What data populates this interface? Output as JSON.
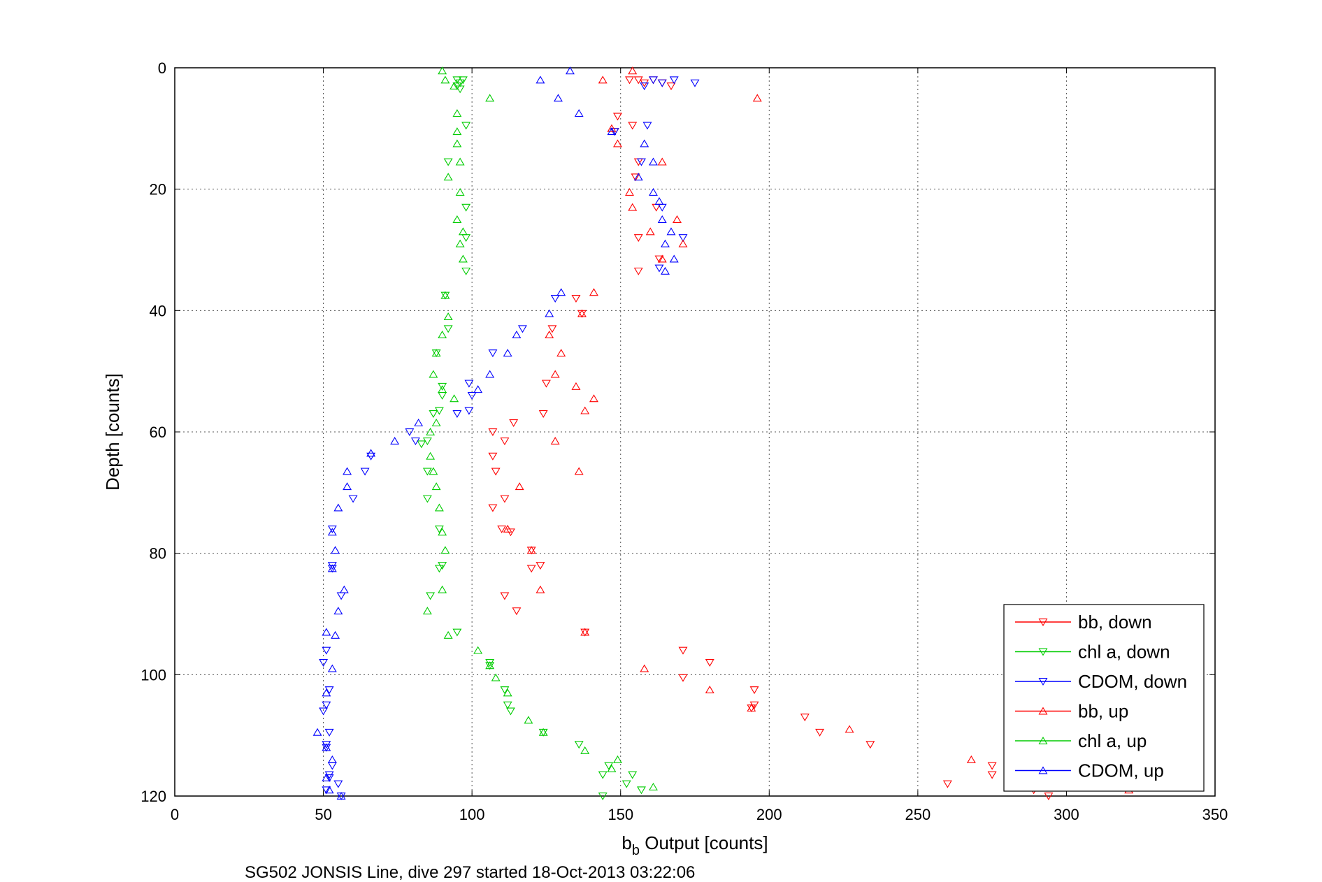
{
  "caption": "SG502 JONSIS Line, dive 297 started 18-Oct-2013 03:22:06",
  "chart_data": {
    "type": "scatter",
    "xlabel_main": "b",
    "xlabel_sub": "b",
    "xlabel_rest": " Output [counts]",
    "ylabel": "Depth [counts]",
    "xlim": [
      0,
      350
    ],
    "ylim": [
      0,
      120
    ],
    "y_reversed": true,
    "xticks": [
      0,
      50,
      100,
      150,
      200,
      250,
      300,
      350
    ],
    "yticks": [
      0,
      20,
      40,
      60,
      80,
      100,
      120
    ],
    "grid": true,
    "legend_position": "bottom-right",
    "series": [
      {
        "name": "bb, down",
        "color": "#ff0000",
        "marker": "triangle-down",
        "points": [
          [
            153,
            2
          ],
          [
            156,
            2
          ],
          [
            158,
            2.5
          ],
          [
            161,
            2
          ],
          [
            164,
            2.5
          ],
          [
            167,
            3
          ],
          [
            149,
            8
          ],
          [
            154,
            9.5
          ],
          [
            148,
            10.5
          ],
          [
            156,
            15.5
          ],
          [
            155,
            18
          ],
          [
            162,
            23
          ],
          [
            156,
            28
          ],
          [
            163,
            31.5
          ],
          [
            156,
            33.5
          ],
          [
            135,
            38
          ],
          [
            137,
            40.5
          ],
          [
            127,
            43
          ],
          [
            125,
            52
          ],
          [
            124,
            57
          ],
          [
            114,
            58.5
          ],
          [
            107,
            60
          ],
          [
            111,
            61.5
          ],
          [
            107,
            64
          ],
          [
            108,
            66.5
          ],
          [
            111,
            71
          ],
          [
            107,
            72.5
          ],
          [
            113,
            76.5
          ],
          [
            110,
            76
          ],
          [
            120,
            79.5
          ],
          [
            123,
            82
          ],
          [
            120,
            82.5
          ],
          [
            111,
            87
          ],
          [
            115,
            89.5
          ],
          [
            138,
            93
          ],
          [
            171,
            96
          ],
          [
            180,
            98
          ],
          [
            171,
            100.5
          ],
          [
            195,
            102.5
          ],
          [
            195,
            105
          ],
          [
            194,
            105.5
          ],
          [
            212,
            107
          ],
          [
            217,
            109.5
          ],
          [
            234,
            111.5
          ],
          [
            275,
            115
          ],
          [
            275,
            116.5
          ],
          [
            260,
            118
          ],
          [
            289,
            119
          ],
          [
            294,
            120
          ]
        ]
      },
      {
        "name": "chl a, down",
        "color": "#00cc00",
        "marker": "triangle-down",
        "points": [
          [
            95,
            2
          ],
          [
            97,
            2
          ],
          [
            96,
            2.5
          ],
          [
            95,
            3
          ],
          [
            96,
            3.5
          ],
          [
            98,
            9.5
          ],
          [
            92,
            15.5
          ],
          [
            98,
            23
          ],
          [
            98,
            28
          ],
          [
            98,
            33.5
          ],
          [
            91,
            37.5
          ],
          [
            92,
            43
          ],
          [
            88,
            47
          ],
          [
            90,
            52.5
          ],
          [
            90,
            54
          ],
          [
            89,
            56.5
          ],
          [
            87,
            57
          ],
          [
            85,
            61.5
          ],
          [
            83,
            62
          ],
          [
            85,
            66.5
          ],
          [
            85,
            71
          ],
          [
            89,
            76
          ],
          [
            90,
            82
          ],
          [
            89,
            82.5
          ],
          [
            86,
            87
          ],
          [
            95,
            93
          ],
          [
            106,
            98
          ],
          [
            106,
            98.5
          ],
          [
            111,
            102.5
          ],
          [
            112,
            105
          ],
          [
            113,
            106
          ],
          [
            124,
            109.5
          ],
          [
            136,
            111.5
          ],
          [
            146,
            115
          ],
          [
            144,
            116.5
          ],
          [
            154,
            116.5
          ],
          [
            152,
            118
          ],
          [
            157,
            119
          ],
          [
            144,
            120
          ]
        ]
      },
      {
        "name": "CDOM, down",
        "color": "#0000ff",
        "marker": "triangle-down",
        "points": [
          [
            161,
            2
          ],
          [
            168,
            2
          ],
          [
            175,
            2.5
          ],
          [
            164,
            2.5
          ],
          [
            158,
            3
          ],
          [
            159,
            9.5
          ],
          [
            148,
            10.5
          ],
          [
            157,
            15.5
          ],
          [
            164,
            23
          ],
          [
            171,
            28
          ],
          [
            163,
            33
          ],
          [
            128,
            38
          ],
          [
            117,
            43
          ],
          [
            107,
            47
          ],
          [
            99,
            52
          ],
          [
            100,
            54
          ],
          [
            99,
            56.5
          ],
          [
            95,
            57
          ],
          [
            81,
            61.5
          ],
          [
            79,
            60
          ],
          [
            66,
            64
          ],
          [
            64,
            66.5
          ],
          [
            60,
            71
          ],
          [
            53,
            76
          ],
          [
            53,
            82
          ],
          [
            53,
            82.5
          ],
          [
            56,
            87
          ],
          [
            51,
            96
          ],
          [
            50,
            98
          ],
          [
            52,
            102.5
          ],
          [
            51,
            105
          ],
          [
            50,
            106
          ],
          [
            52,
            109.5
          ],
          [
            51,
            111.5
          ],
          [
            51,
            112
          ],
          [
            53,
            115
          ],
          [
            52,
            116.5
          ],
          [
            52,
            117
          ],
          [
            55,
            118
          ],
          [
            51,
            119
          ],
          [
            56,
            120
          ]
        ]
      },
      {
        "name": "bb, up",
        "color": "#ff0000",
        "marker": "triangle-up",
        "points": [
          [
            154,
            0.5
          ],
          [
            144,
            2
          ],
          [
            196,
            5
          ],
          [
            147,
            10
          ],
          [
            149,
            12.5
          ],
          [
            164,
            15.5
          ],
          [
            153,
            20.5
          ],
          [
            154,
            23
          ],
          [
            169,
            25
          ],
          [
            160,
            27
          ],
          [
            171,
            29
          ],
          [
            164,
            31.5
          ],
          [
            141,
            37
          ],
          [
            137,
            40.5
          ],
          [
            126,
            44
          ],
          [
            130,
            47
          ],
          [
            128,
            50.5
          ],
          [
            135,
            52.5
          ],
          [
            141,
            54.5
          ],
          [
            138,
            56.5
          ],
          [
            128,
            61.5
          ],
          [
            136,
            66.5
          ],
          [
            116,
            69
          ],
          [
            112,
            76
          ],
          [
            120,
            79.5
          ],
          [
            123,
            86
          ],
          [
            138,
            93
          ],
          [
            158,
            99
          ],
          [
            180,
            102.5
          ],
          [
            194,
            105.5
          ],
          [
            227,
            109
          ],
          [
            268,
            114
          ],
          [
            321,
            119
          ]
        ]
      },
      {
        "name": "chl a, up",
        "color": "#00cc00",
        "marker": "triangle-up",
        "points": [
          [
            90,
            0.5
          ],
          [
            91,
            2
          ],
          [
            94,
            3
          ],
          [
            106,
            5
          ],
          [
            95,
            7.5
          ],
          [
            95,
            10.5
          ],
          [
            95,
            12.5
          ],
          [
            96,
            15.5
          ],
          [
            92,
            18
          ],
          [
            96,
            20.5
          ],
          [
            95,
            25
          ],
          [
            97,
            27
          ],
          [
            96,
            29
          ],
          [
            97,
            31.5
          ],
          [
            91,
            37.5
          ],
          [
            92,
            41
          ],
          [
            90,
            44
          ],
          [
            88,
            47
          ],
          [
            87,
            50.5
          ],
          [
            90,
            53
          ],
          [
            94,
            54.5
          ],
          [
            88,
            58.5
          ],
          [
            86,
            60
          ],
          [
            86,
            64
          ],
          [
            87,
            66.5
          ],
          [
            88,
            69
          ],
          [
            89,
            72.5
          ],
          [
            90,
            76.5
          ],
          [
            91,
            79.5
          ],
          [
            90,
            86
          ],
          [
            85,
            89.5
          ],
          [
            92,
            93.5
          ],
          [
            102,
            96
          ],
          [
            106,
            98.5
          ],
          [
            108,
            100.5
          ],
          [
            112,
            103
          ],
          [
            119,
            107.5
          ],
          [
            124,
            109.5
          ],
          [
            138,
            112.5
          ],
          [
            149,
            114
          ],
          [
            147,
            115.5
          ],
          [
            161,
            118.5
          ]
        ]
      },
      {
        "name": "CDOM, up",
        "color": "#0000ff",
        "marker": "triangle-up",
        "points": [
          [
            133,
            0.5
          ],
          [
            123,
            2
          ],
          [
            129,
            5
          ],
          [
            136,
            7.5
          ],
          [
            147,
            10.5
          ],
          [
            158,
            12.5
          ],
          [
            161,
            15.5
          ],
          [
            156,
            18
          ],
          [
            161,
            20.5
          ],
          [
            163,
            22
          ],
          [
            164,
            25
          ],
          [
            167,
            27
          ],
          [
            165,
            29
          ],
          [
            168,
            31.5
          ],
          [
            165,
            33.5
          ],
          [
            130,
            37
          ],
          [
            126,
            40.5
          ],
          [
            115,
            44
          ],
          [
            112,
            47
          ],
          [
            106,
            50.5
          ],
          [
            102,
            53
          ],
          [
            82,
            58.5
          ],
          [
            74,
            61.5
          ],
          [
            66,
            63.5
          ],
          [
            58,
            66.5
          ],
          [
            58,
            69
          ],
          [
            55,
            72.5
          ],
          [
            53,
            76.5
          ],
          [
            54,
            79.5
          ],
          [
            53,
            82.5
          ],
          [
            57,
            86
          ],
          [
            55,
            89.5
          ],
          [
            51,
            93
          ],
          [
            54,
            93.5
          ],
          [
            53,
            99
          ],
          [
            51,
            103
          ],
          [
            48,
            109.5
          ],
          [
            51,
            112
          ],
          [
            53,
            114
          ],
          [
            51,
            117
          ],
          [
            52,
            119
          ],
          [
            56,
            120
          ]
        ]
      }
    ]
  }
}
